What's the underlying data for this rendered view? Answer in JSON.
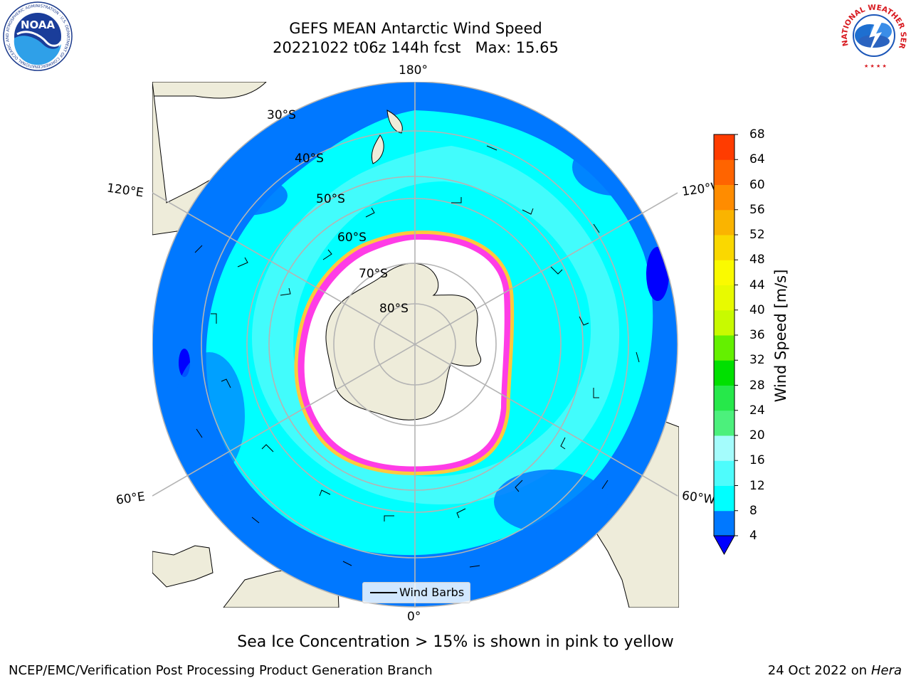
{
  "header": {
    "title_line1": "GEFS MEAN Antarctic Wind Speed",
    "title_line2": "20221022 t06z 144h fcst   Max: 15.65"
  },
  "logos": {
    "noaa": {
      "name": "NOAA",
      "ring_text": "NATIONAL OCEANIC AND ATMOSPHERIC ADMINISTRATION · U.S. DEPARTMENT OF COMMERCE ·"
    },
    "nws": {
      "ring_text": "NATIONAL WEATHER SERVICE"
    }
  },
  "map": {
    "latitude_labels": [
      "30°S",
      "40°S",
      "50°S",
      "60°S",
      "70°S",
      "80°S"
    ],
    "longitude_labels": {
      "top": "180°",
      "bottom": "0°",
      "upper_left": "120°E",
      "upper_right": "120°W",
      "lower_left": "60°E",
      "lower_right": "60°W"
    },
    "colors": {
      "land": "#eeecda",
      "sea_ice_interior": "#ffffff",
      "sea_ice_edge_pink": "#ff3ce6",
      "sea_ice_edge_yellow": "#ffc93c",
      "grid": "#b4b4b4"
    },
    "legend": {
      "label": "Wind Barbs"
    }
  },
  "colorbar": {
    "label": "Wind Speed [m/s]",
    "ticks": [
      4,
      8,
      12,
      16,
      20,
      24,
      28,
      32,
      36,
      40,
      44,
      48,
      52,
      56,
      60,
      64,
      68
    ],
    "colors": [
      "#0078ff",
      "#00ffff",
      "#4efcfc",
      "#a4fcfc",
      "#4cf07c",
      "#26e84a",
      "#00e000",
      "#64f000",
      "#c8fa00",
      "#e8fa00",
      "#fafa00",
      "#fad800",
      "#fab400",
      "#ff8c00",
      "#ff6400",
      "#ff3c00",
      "#ff0000"
    ],
    "extend_min_color": "#0000ff"
  },
  "footer": {
    "sea_ice_note": "Sea Ice Concentration > 15% is shown in pink to yellow",
    "credit": "NCEP/EMC/Verification Post Processing Product Generation Branch",
    "date_text": "24 Oct 2022 on ",
    "machine": "Hera"
  }
}
